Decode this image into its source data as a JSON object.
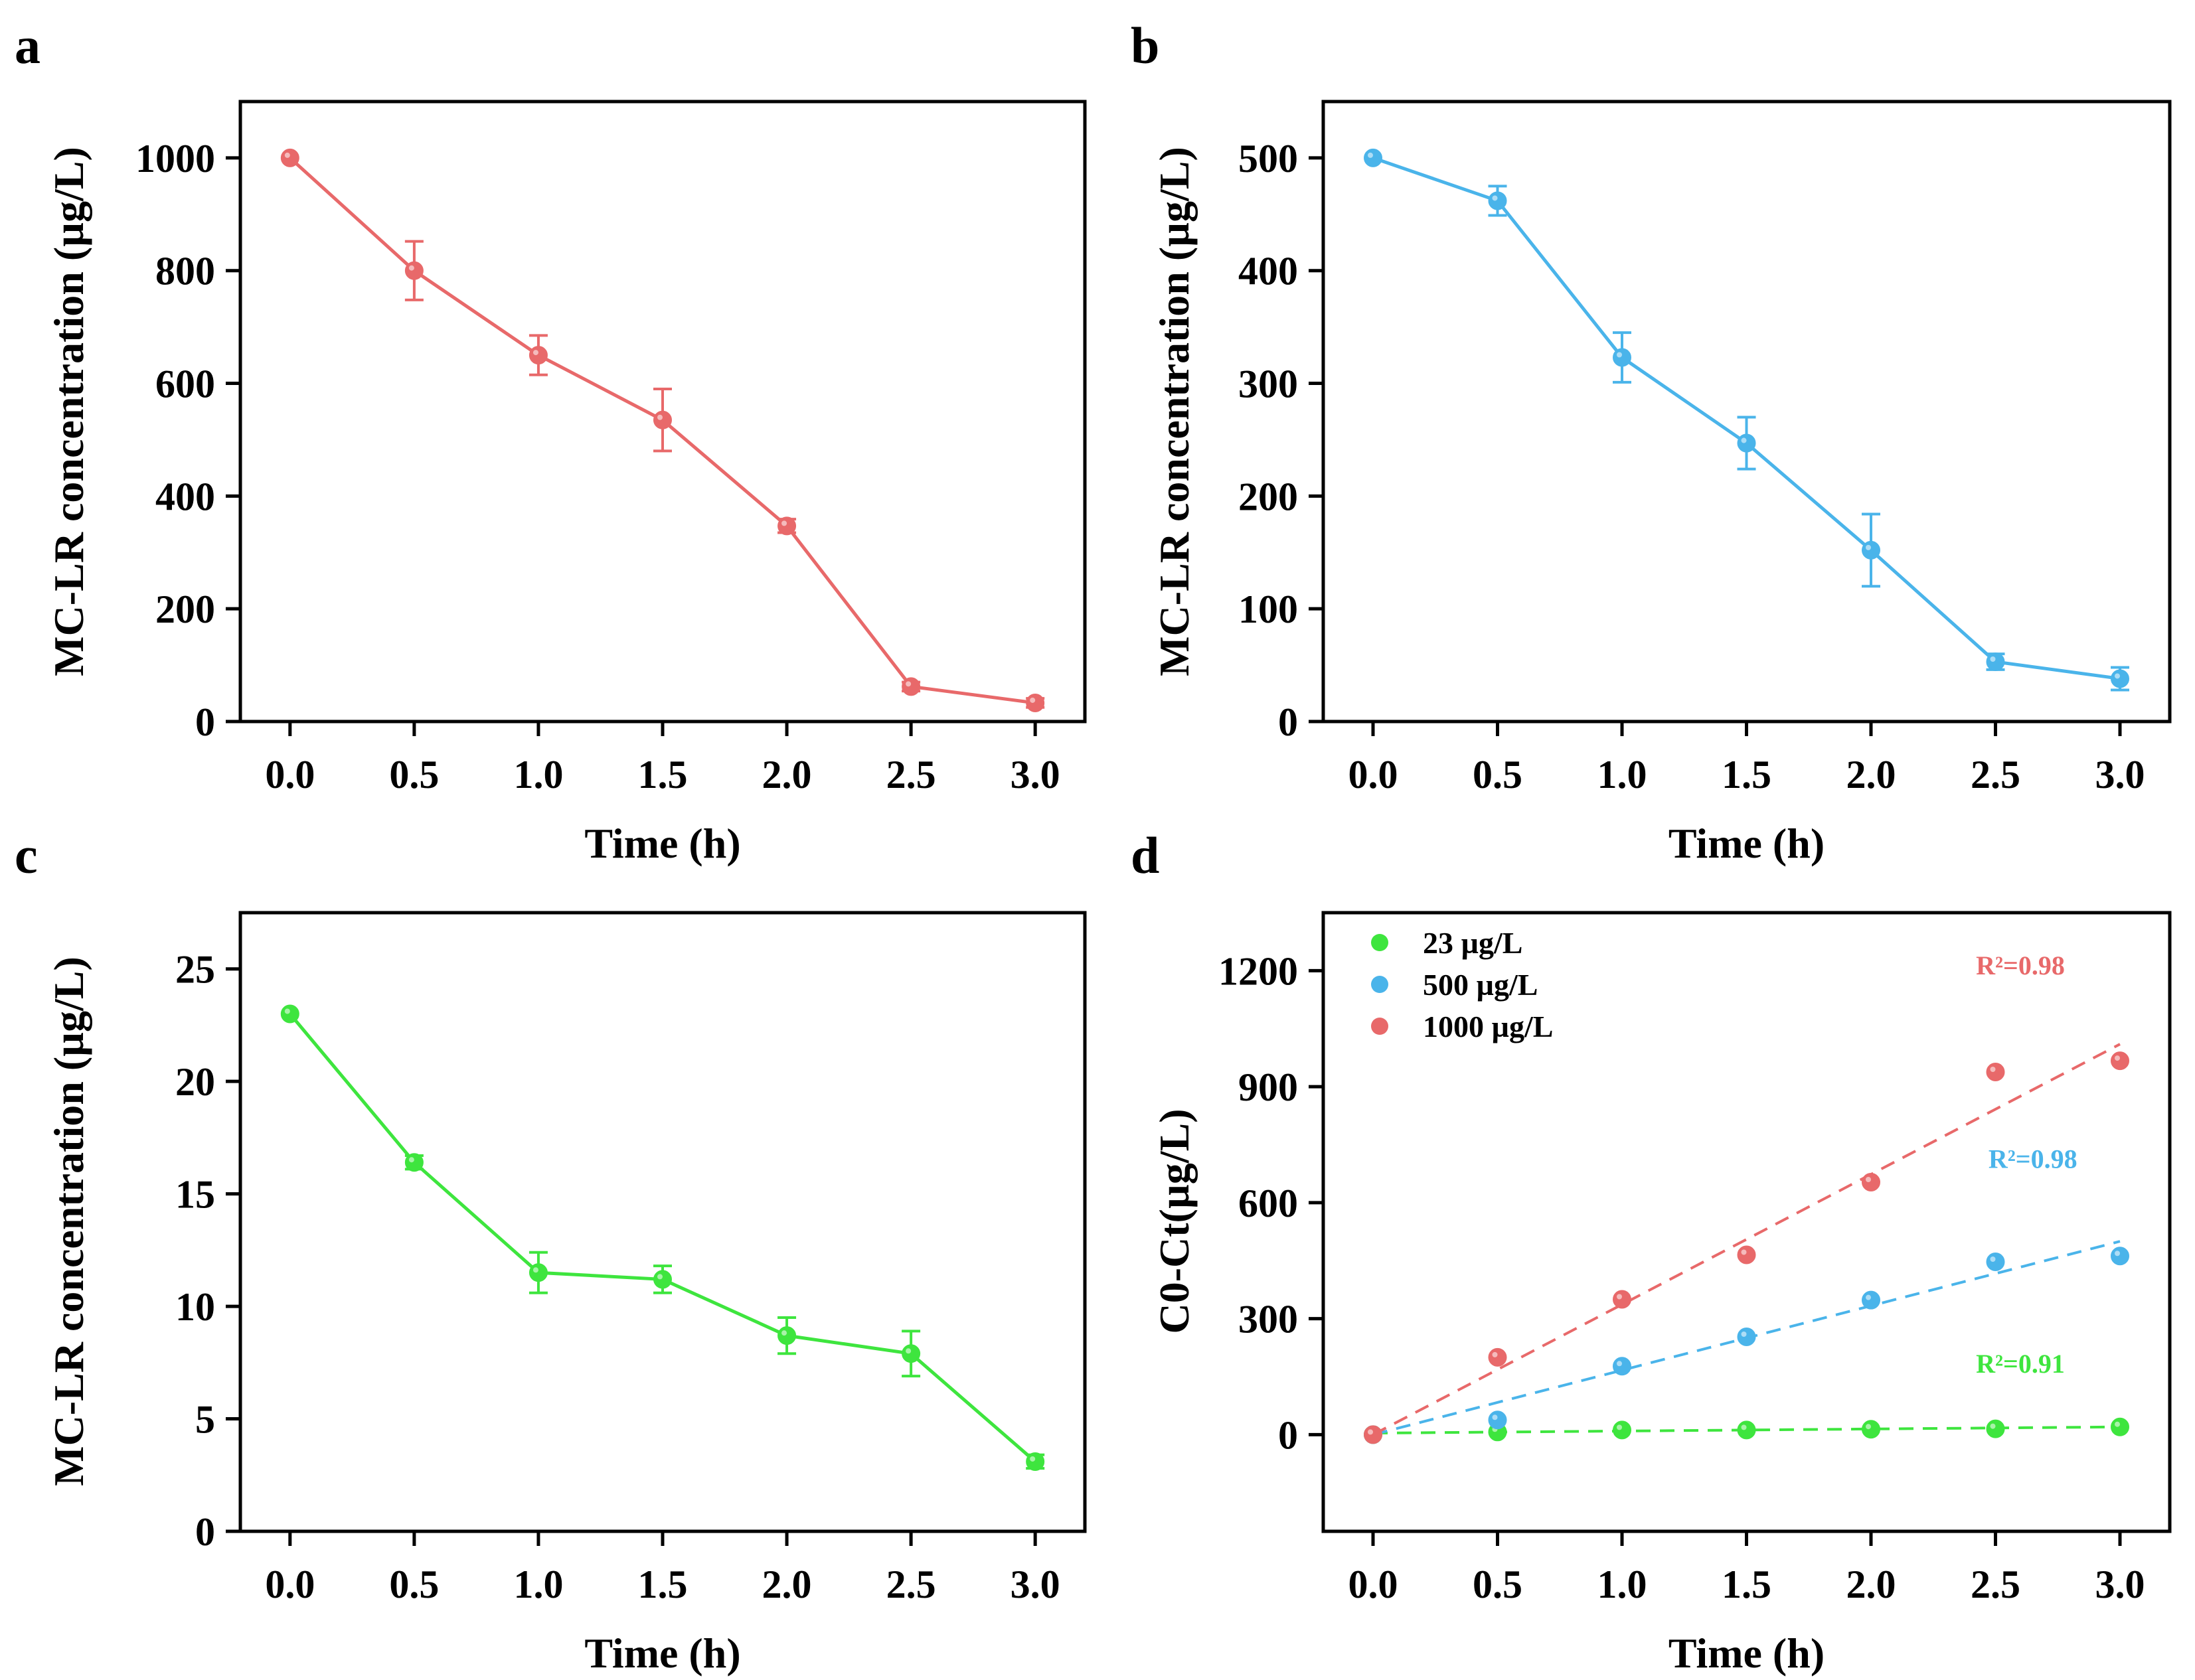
{
  "colors": {
    "red": "#e8696a",
    "blue": "#4ab4ea",
    "green": "#3ee53e",
    "axis": "#000000"
  },
  "chart_data": [
    {
      "panel_label": "a",
      "type": "line",
      "xlabel": "Time (h)",
      "ylabel": "MC-LR concentration (µg/L)",
      "xlim": [
        -0.2,
        3.2
      ],
      "ylim": [
        0,
        1100
      ],
      "xticks": [
        0.0,
        0.5,
        1.0,
        1.5,
        2.0,
        2.5,
        3.0
      ],
      "xtick_labels": [
        "0.0",
        "0.5",
        "1.0",
        "1.5",
        "2.0",
        "2.5",
        "3.0"
      ],
      "yticks": [
        0,
        200,
        400,
        600,
        800,
        1000
      ],
      "ytick_labels": [
        "0",
        "200",
        "400",
        "600",
        "800",
        "1000"
      ],
      "series": [
        {
          "name": "1000 µg/L",
          "color": "red",
          "x": [
            0.0,
            0.5,
            1.0,
            1.5,
            2.0,
            2.5,
            3.0
          ],
          "values": [
            1000,
            800,
            650,
            535,
            347,
            62,
            33
          ],
          "errors": [
            0,
            52,
            35,
            55,
            12,
            8,
            8
          ]
        }
      ]
    },
    {
      "panel_label": "b",
      "type": "line",
      "xlabel": "Time (h)",
      "ylabel": "MC-LR concentration (µg/L)",
      "xlim": [
        -0.2,
        3.2
      ],
      "ylim": [
        0,
        550
      ],
      "xticks": [
        0.0,
        0.5,
        1.0,
        1.5,
        2.0,
        2.5,
        3.0
      ],
      "xtick_labels": [
        "0.0",
        "0.5",
        "1.0",
        "1.5",
        "2.0",
        "2.5",
        "3.0"
      ],
      "yticks": [
        0,
        100,
        200,
        300,
        400,
        500
      ],
      "ytick_labels": [
        "0",
        "100",
        "200",
        "300",
        "400",
        "500"
      ],
      "series": [
        {
          "name": "500 µg/L",
          "color": "blue",
          "x": [
            0.0,
            0.5,
            1.0,
            1.5,
            2.0,
            2.5,
            3.0
          ],
          "values": [
            500,
            462,
            323,
            247,
            152,
            53,
            38
          ],
          "errors": [
            0,
            13,
            22,
            23,
            32,
            7,
            10
          ]
        }
      ]
    },
    {
      "panel_label": "c",
      "type": "line",
      "xlabel": "Time (h)",
      "ylabel": "MC-LR concentration (µg/L)",
      "xlim": [
        -0.2,
        3.2
      ],
      "ylim": [
        0,
        27.5
      ],
      "xticks": [
        0.0,
        0.5,
        1.0,
        1.5,
        2.0,
        2.5,
        3.0
      ],
      "xtick_labels": [
        "0.0",
        "0.5",
        "1.0",
        "1.5",
        "2.0",
        "2.5",
        "3.0"
      ],
      "yticks": [
        0,
        5,
        10,
        15,
        20,
        25
      ],
      "ytick_labels": [
        "0",
        "5",
        "10",
        "15",
        "20",
        "25"
      ],
      "series": [
        {
          "name": "23 µg/L",
          "color": "green",
          "x": [
            0.0,
            0.5,
            1.0,
            1.5,
            2.0,
            2.5,
            3.0
          ],
          "values": [
            23.0,
            16.4,
            11.5,
            11.2,
            8.7,
            7.9,
            3.1
          ],
          "errors": [
            0,
            0.3,
            0.9,
            0.6,
            0.8,
            1.0,
            0.3
          ]
        }
      ]
    },
    {
      "panel_label": "d",
      "type": "scatter",
      "xlabel": "Time (h)",
      "ylabel": "C0-Ct(µg/L)",
      "xlim": [
        -0.2,
        3.2
      ],
      "ylim": [
        -250,
        1350
      ],
      "xticks": [
        0.0,
        0.5,
        1.0,
        1.5,
        2.0,
        2.5,
        3.0
      ],
      "xtick_labels": [
        "0.0",
        "0.5",
        "1.0",
        "1.5",
        "2.0",
        "2.5",
        "3.0"
      ],
      "yticks": [
        0,
        300,
        600,
        900,
        1200
      ],
      "ytick_labels": [
        "0",
        "300",
        "600",
        "900",
        "1200"
      ],
      "legend": {
        "position": "top-left",
        "entries": [
          {
            "label": "23 µg/L",
            "color": "green"
          },
          {
            "label": "500 µg/L",
            "color": "blue"
          },
          {
            "label": "1000 µg/L",
            "color": "red"
          }
        ]
      },
      "series": [
        {
          "name": "23 µg/L",
          "color": "green",
          "x": [
            0.0,
            0.5,
            1.0,
            1.5,
            2.0,
            2.5,
            3.0
          ],
          "values": [
            0,
            7,
            12,
            12,
            14,
            15,
            20
          ],
          "fit": {
            "x": [
              0.0,
              3.0
            ],
            "y": [
              4,
              20
            ]
          },
          "r2_label": "R²=0.91",
          "r2_anchor": [
            2.6,
            160
          ]
        },
        {
          "name": "500 µg/L",
          "color": "blue",
          "x": [
            0.0,
            0.5,
            1.0,
            1.5,
            2.0,
            2.5,
            3.0
          ],
          "values": [
            0,
            38,
            177,
            253,
            348,
            447,
            462
          ],
          "fit": {
            "x": [
              0.0,
              3.0
            ],
            "y": [
              0,
              500
            ]
          },
          "r2_label": "R²=0.98",
          "r2_anchor": [
            2.65,
            690
          ]
        },
        {
          "name": "1000 µg/L",
          "color": "red",
          "x": [
            0.0,
            0.5,
            1.0,
            1.5,
            2.0,
            2.5,
            3.0
          ],
          "values": [
            0,
            200,
            350,
            465,
            653,
            938,
            967
          ],
          "fit": {
            "x": [
              0.0,
              3.0
            ],
            "y": [
              0,
              1010
            ]
          },
          "r2_label": "R²=0.98",
          "r2_anchor": [
            2.6,
            1190
          ]
        }
      ]
    }
  ]
}
